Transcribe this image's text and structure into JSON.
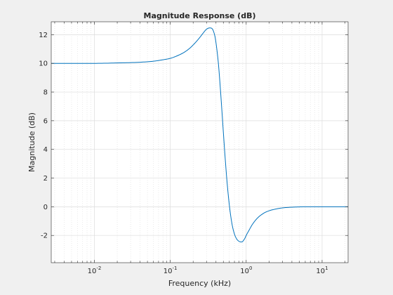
{
  "chart_data": {
    "type": "line",
    "title": "Magnitude Response (dB)",
    "xlabel": "Frequency (kHz)",
    "ylabel": "Magnitude (dB)",
    "xscale": "log",
    "xlim": [
      0.0027,
      22
    ],
    "ylim": [
      -3.9,
      12.9
    ],
    "grid": true,
    "minor_grid": true,
    "yticks": [
      -2,
      0,
      2,
      4,
      6,
      8,
      10,
      12
    ],
    "xticks": [
      {
        "base": "10",
        "exp": "-2",
        "value": 0.01
      },
      {
        "base": "10",
        "exp": "-1",
        "value": 0.1
      },
      {
        "base": "10",
        "exp": "0",
        "value": 1
      },
      {
        "base": "10",
        "exp": "1",
        "value": 10
      }
    ],
    "line_color": "#0072bd",
    "series": [
      {
        "x": [
          0.0027,
          0.005,
          0.01,
          0.02,
          0.04,
          0.06,
          0.08,
          0.1,
          0.12,
          0.15,
          0.18,
          0.21,
          0.24,
          0.27,
          0.3,
          0.33,
          0.35,
          0.37,
          0.39,
          0.41,
          0.43,
          0.45,
          0.47,
          0.5,
          0.53,
          0.56,
          0.6,
          0.65,
          0.7,
          0.75,
          0.8,
          0.85,
          0.88,
          0.92,
          0.96,
          1.0,
          1.1,
          1.2,
          1.4,
          1.7,
          2.0,
          2.5,
          3.0,
          4.0,
          5.0,
          6.0,
          8.0,
          10,
          14,
          22
        ],
        "y": [
          10.0,
          10.0,
          10.0,
          10.03,
          10.08,
          10.15,
          10.25,
          10.35,
          10.5,
          10.75,
          11.05,
          11.4,
          11.75,
          12.1,
          12.38,
          12.47,
          12.45,
          12.25,
          11.8,
          11.0,
          10.0,
          8.7,
          7.3,
          5.2,
          3.3,
          1.7,
          0.1,
          -1.2,
          -1.9,
          -2.25,
          -2.4,
          -2.45,
          -2.45,
          -2.35,
          -2.2,
          -2.0,
          -1.6,
          -1.25,
          -0.8,
          -0.45,
          -0.28,
          -0.15,
          -0.08,
          -0.03,
          -0.01,
          0.0,
          0.0,
          0.0,
          0.0,
          0.0
        ]
      }
    ]
  }
}
